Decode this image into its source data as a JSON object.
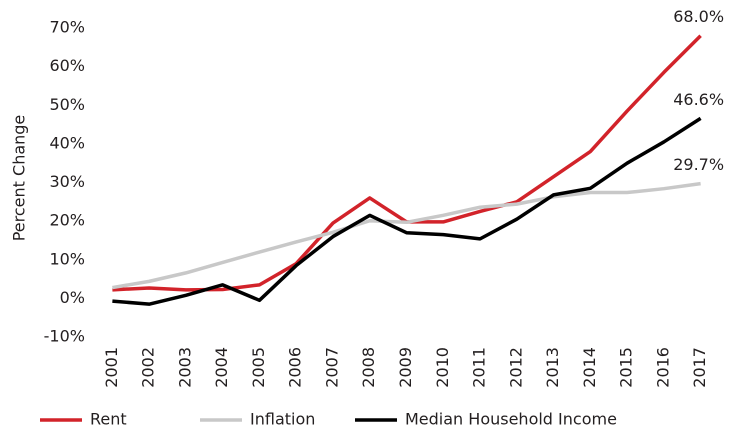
{
  "chart_data": {
    "type": "line",
    "y_label": "Percent Change",
    "categories": [
      "2001",
      "2002",
      "2003",
      "2004",
      "2005",
      "2006",
      "2007",
      "2008",
      "2009",
      "2010",
      "2011",
      "2012",
      "2013",
      "2014",
      "2015",
      "2016",
      "2017"
    ],
    "series": [
      {
        "name": "Rent",
        "color": "#d2232a",
        "values": [
          2.2,
          2.7,
          2.2,
          2.3,
          3.5,
          9,
          19.5,
          26,
          19.8,
          19.8,
          22.5,
          25,
          31.5,
          38,
          48.5,
          58.5,
          68.0
        ],
        "value_labels": [
          null,
          null,
          null,
          null,
          null,
          null,
          null,
          null,
          null,
          null,
          null,
          null,
          null,
          null,
          null,
          null,
          "68.0%"
        ]
      },
      {
        "name": "Inflation",
        "color": "#c8c8c8",
        "values": [
          2.8,
          4.4,
          6.6,
          9.3,
          12.0,
          14.6,
          17.1,
          20.1,
          19.7,
          21.5,
          23.6,
          24.4,
          26.3,
          27.4,
          27.4,
          28.4,
          29.7
        ],
        "value_labels": [
          null,
          null,
          null,
          null,
          null,
          null,
          null,
          null,
          null,
          null,
          null,
          null,
          null,
          null,
          null,
          null,
          "29.7%"
        ]
      },
      {
        "name": "Median Household Income",
        "color": "#000000",
        "values": [
          -0.7,
          -1.5,
          0.8,
          3.5,
          -0.5,
          8.5,
          16,
          21.5,
          17,
          16.5,
          15.4,
          20.5,
          26.8,
          28.5,
          35,
          40.5,
          46.6
        ],
        "value_labels": [
          null,
          null,
          null,
          null,
          null,
          null,
          null,
          null,
          null,
          null,
          null,
          null,
          null,
          null,
          null,
          null,
          "46.6%"
        ]
      }
    ],
    "ylim": [
      -10,
      70
    ],
    "yticks": [
      {
        "value": -10,
        "label": "-10%"
      },
      {
        "value": 0,
        "label": "0%"
      },
      {
        "value": 10,
        "label": "10%"
      },
      {
        "value": 20,
        "label": "20%"
      },
      {
        "value": 30,
        "label": "30%"
      },
      {
        "value": 40,
        "label": "40%"
      },
      {
        "value": 50,
        "label": "50%"
      },
      {
        "value": 60,
        "label": "60%"
      },
      {
        "value": 70,
        "label": "70%"
      }
    ],
    "grid": false,
    "legend": "bottom"
  }
}
